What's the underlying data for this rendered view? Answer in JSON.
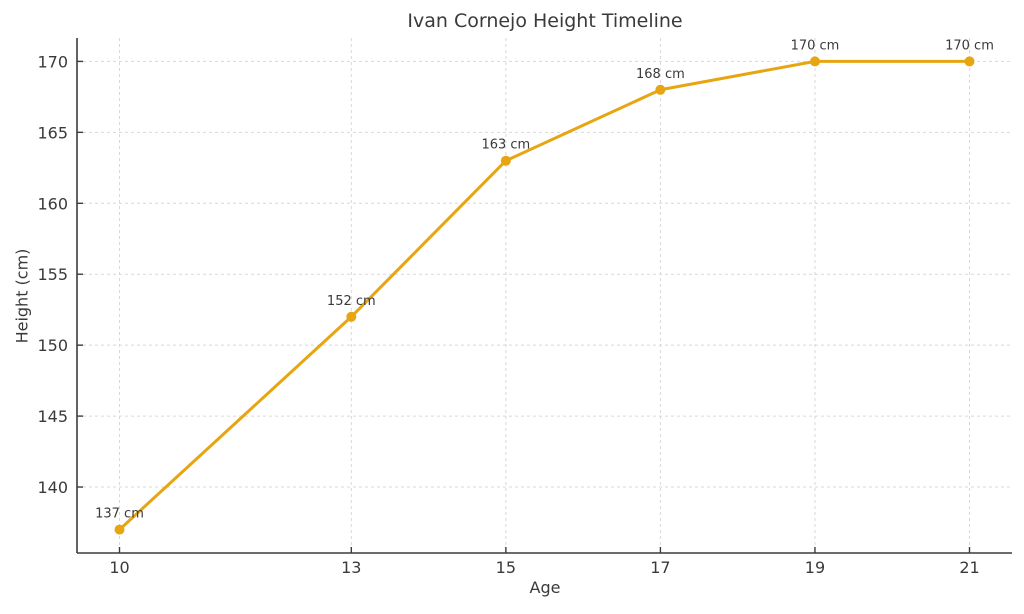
{
  "chart_data": {
    "type": "line",
    "title": "Ivan Cornejo Height Timeline",
    "xlabel": "Age",
    "ylabel": "Height (cm)",
    "x": [
      10,
      13,
      15,
      17,
      19,
      21
    ],
    "y": [
      137,
      152,
      163,
      168,
      170,
      170
    ],
    "series": [
      {
        "name": "Height",
        "x": [
          10,
          13,
          15,
          17,
          19,
          21
        ],
        "values": [
          137,
          152,
          163,
          168,
          170,
          170
        ]
      }
    ],
    "point_labels": [
      "137 cm",
      "152 cm",
      "163 cm",
      "168 cm",
      "170 cm",
      "170 cm"
    ],
    "x_ticks": [
      "10",
      "13",
      "15",
      "17",
      "19",
      "21"
    ],
    "y_ticks": [
      "140",
      "145",
      "150",
      "155",
      "160",
      "165",
      "170"
    ],
    "xlim": [
      9.45,
      21.55
    ],
    "ylim": [
      135.35,
      171.65
    ],
    "grid": true,
    "grid_style": "dashed",
    "legend": "none",
    "marker": "circle",
    "colors": {
      "line": "#E8A512",
      "marker": "#E8A512",
      "text": "#3A3A3A",
      "grid": "#D8D8D8",
      "spine": "#3C3C3C",
      "background": "#FFFFFF"
    }
  }
}
